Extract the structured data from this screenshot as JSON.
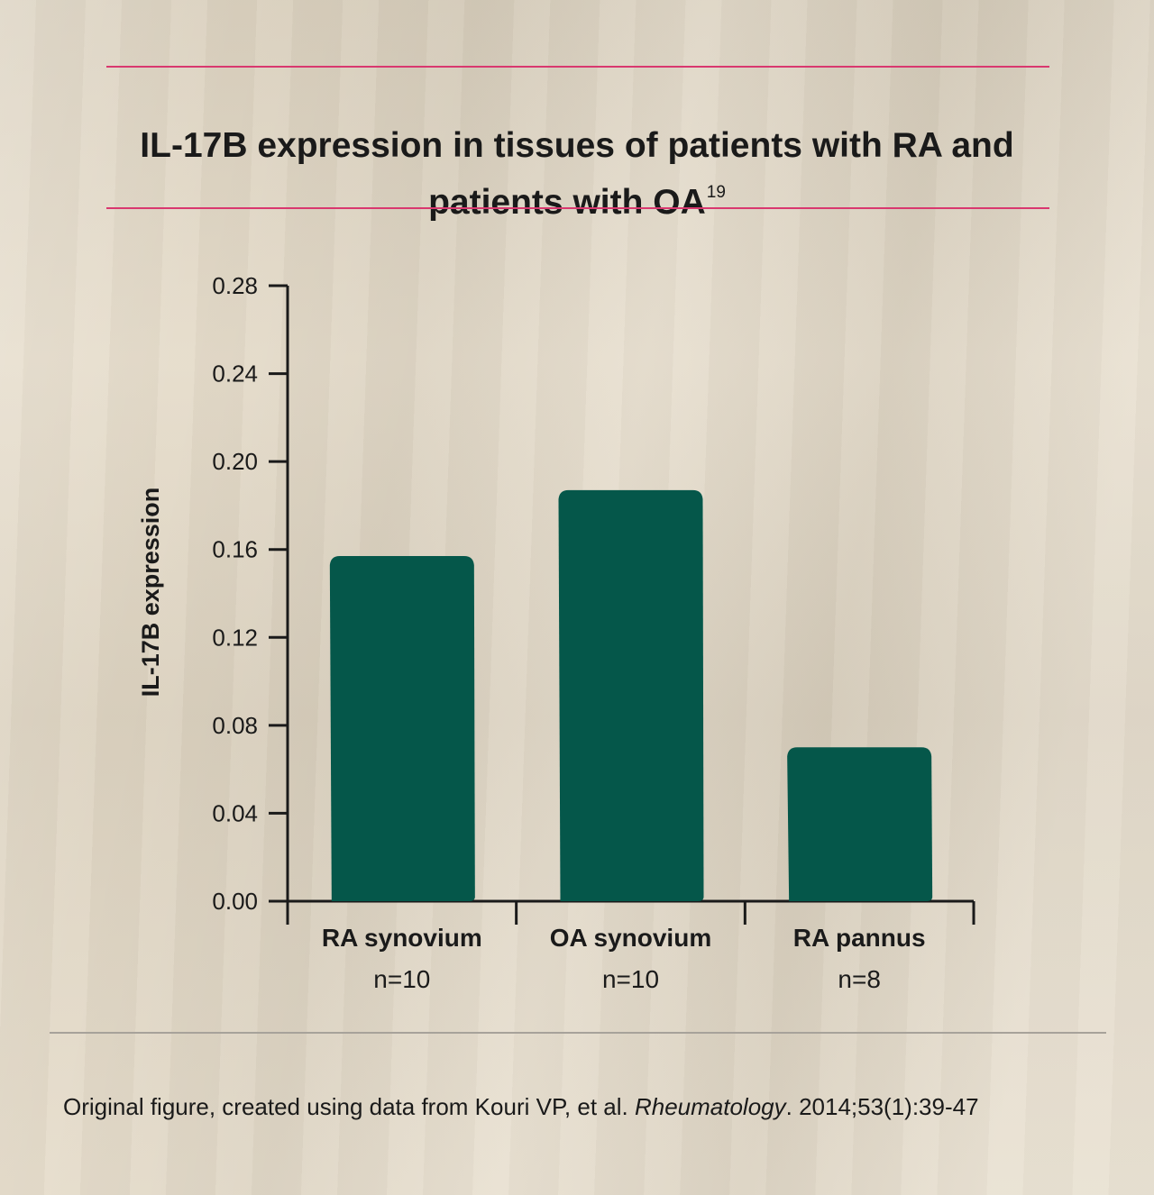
{
  "title": {
    "text": "IL-17B expression in tissues of patients with RA and patients with OA",
    "superscript": "19"
  },
  "chart_data": {
    "type": "bar",
    "categories": [
      "RA synovium",
      "OA synovium",
      "RA pannus"
    ],
    "category_sublabels": [
      "n=10",
      "n=10",
      "n=8"
    ],
    "values": [
      0.157,
      0.187,
      0.07
    ],
    "ylabel": "IL-17B expression",
    "xlabel": "",
    "ylim": [
      0,
      0.28
    ],
    "yticks": [
      "0.00",
      "0.04",
      "0.08",
      "0.12",
      "0.16",
      "0.20",
      "0.24",
      "0.28"
    ],
    "bar_color": "#05574a",
    "grid": false,
    "legend": "none"
  },
  "source": {
    "prefix": "Original figure, created using data from Kouri VP, et al. ",
    "journal": "Rheumatology",
    "suffix": ". 2014;53(1):39-47"
  },
  "colors": {
    "accent_rule": "#d9386f",
    "background": "#e3d9c6",
    "bar": "#05574a"
  }
}
